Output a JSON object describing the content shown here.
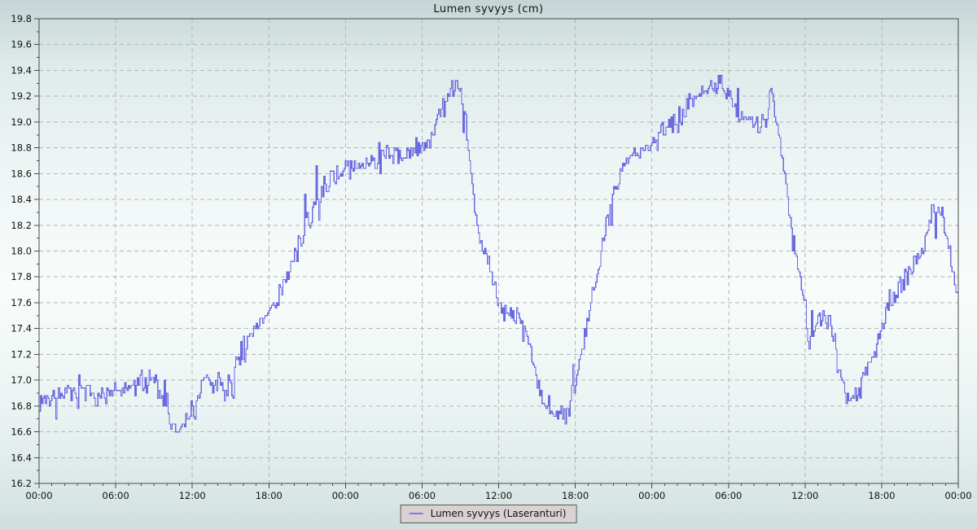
{
  "title": "Lumen syvyys (cm)",
  "legend": {
    "label": "Lumen syvyys (Laseranturi)"
  },
  "colors": {
    "line": "#6b6be0",
    "grid": "#b5b5b5",
    "axis": "#4a4a4a",
    "text": "#111111",
    "legend_bg": "#d9d2d2"
  },
  "chart_data": {
    "type": "line",
    "title": "Lumen syvyys (cm)",
    "xlabel": "",
    "ylabel": "",
    "grid": true,
    "legend_position": "bottom",
    "legend_entries": [
      "Lumen syvyys (Laseranturi)"
    ],
    "ylim": [
      16.2,
      19.8
    ],
    "y_tick_step": 0.2,
    "y_minor_step": 0.1,
    "xlim_hours": [
      0,
      72
    ],
    "x_tick_step_hours": 6,
    "x_minor_step_hours": 1,
    "x_tick_labels": [
      "00:00",
      "06:00",
      "12:00",
      "18:00",
      "00:00",
      "06:00",
      "12:00",
      "18:00",
      "00:00",
      "06:00",
      "12:00",
      "18:00",
      "00:00"
    ],
    "series": [
      {
        "name": "Lumen syvyys (Laseranturi)",
        "color": "#6b6be0",
        "style": "noisy-step",
        "sample_interval_hours": 0.1,
        "noise_amplitude": 0.1,
        "spike_chance": 0.08,
        "spike_amplitude": 0.2,
        "quantize": 0.02,
        "seed": 7,
        "trend_keypoints": [
          [
            0,
            16.85
          ],
          [
            1,
            16.86
          ],
          [
            2,
            16.9
          ],
          [
            3,
            16.88
          ],
          [
            4,
            16.9
          ],
          [
            5,
            16.88
          ],
          [
            6,
            16.9
          ],
          [
            7,
            16.92
          ],
          [
            8,
            17.0
          ],
          [
            8.5,
            17.05
          ],
          [
            9,
            17.0
          ],
          [
            9.5,
            16.9
          ],
          [
            10,
            16.78
          ],
          [
            10.5,
            16.6
          ],
          [
            11,
            16.6
          ],
          [
            11.5,
            16.68
          ],
          [
            12,
            16.78
          ],
          [
            12.5,
            16.92
          ],
          [
            13,
            17.0
          ],
          [
            13.5,
            16.95
          ],
          [
            14,
            16.98
          ],
          [
            14.5,
            16.9
          ],
          [
            15,
            17.0
          ],
          [
            15.5,
            17.1
          ],
          [
            16,
            17.22
          ],
          [
            16.5,
            17.32
          ],
          [
            17,
            17.4
          ],
          [
            17.5,
            17.45
          ],
          [
            18,
            17.55
          ],
          [
            18.5,
            17.62
          ],
          [
            19,
            17.72
          ],
          [
            19.5,
            17.82
          ],
          [
            20,
            17.95
          ],
          [
            20.5,
            18.1
          ],
          [
            21,
            18.22
          ],
          [
            21.5,
            18.35
          ],
          [
            22,
            18.45
          ],
          [
            22.5,
            18.52
          ],
          [
            23,
            18.58
          ],
          [
            23.5,
            18.6
          ],
          [
            24,
            18.62
          ],
          [
            25,
            18.66
          ],
          [
            26,
            18.7
          ],
          [
            27,
            18.74
          ],
          [
            28,
            18.74
          ],
          [
            29,
            18.76
          ],
          [
            30,
            18.8
          ],
          [
            30.5,
            18.85
          ],
          [
            31,
            18.95
          ],
          [
            31.5,
            19.08
          ],
          [
            32,
            19.18
          ],
          [
            32.5,
            19.28
          ],
          [
            33,
            19.25
          ],
          [
            33.4,
            19.0
          ],
          [
            33.8,
            18.6
          ],
          [
            34.2,
            18.25
          ],
          [
            34.6,
            18.05
          ],
          [
            35,
            17.95
          ],
          [
            35.5,
            17.8
          ],
          [
            36,
            17.62
          ],
          [
            36.5,
            17.5
          ],
          [
            37,
            17.55
          ],
          [
            37.5,
            17.48
          ],
          [
            38,
            17.42
          ],
          [
            38.5,
            17.25
          ],
          [
            39,
            17.0
          ],
          [
            39.5,
            16.85
          ],
          [
            40,
            16.78
          ],
          [
            40.5,
            16.75
          ],
          [
            41,
            16.72
          ],
          [
            41.5,
            16.8
          ],
          [
            42,
            17.0
          ],
          [
            42.5,
            17.25
          ],
          [
            43,
            17.5
          ],
          [
            43.5,
            17.75
          ],
          [
            44,
            18.0
          ],
          [
            44.5,
            18.25
          ],
          [
            45,
            18.45
          ],
          [
            45.5,
            18.6
          ],
          [
            46,
            18.7
          ],
          [
            46.5,
            18.74
          ],
          [
            47,
            18.76
          ],
          [
            47.5,
            18.8
          ],
          [
            48,
            18.86
          ],
          [
            48.5,
            18.9
          ],
          [
            49,
            18.95
          ],
          [
            49.5,
            18.98
          ],
          [
            50,
            19.0
          ],
          [
            50.5,
            19.06
          ],
          [
            51,
            19.18
          ],
          [
            51.5,
            19.22
          ],
          [
            52,
            19.28
          ],
          [
            52.5,
            19.28
          ],
          [
            53,
            19.3
          ],
          [
            53.5,
            19.26
          ],
          [
            54,
            19.2
          ],
          [
            54.5,
            19.12
          ],
          [
            55,
            19.02
          ],
          [
            55.5,
            19.06
          ],
          [
            56,
            19.0
          ],
          [
            56.5,
            19.05
          ],
          [
            57,
            19.0
          ],
          [
            57.3,
            19.28
          ],
          [
            57.6,
            19.1
          ],
          [
            58,
            18.85
          ],
          [
            58.5,
            18.5
          ],
          [
            59,
            18.15
          ],
          [
            59.5,
            17.85
          ],
          [
            60,
            17.55
          ],
          [
            60.3,
            17.2
          ],
          [
            60.7,
            17.42
          ],
          [
            61,
            17.45
          ],
          [
            61.5,
            17.5
          ],
          [
            62,
            17.4
          ],
          [
            62.5,
            17.2
          ],
          [
            63,
            16.95
          ],
          [
            63.5,
            16.8
          ],
          [
            64,
            16.88
          ],
          [
            64.5,
            17.0
          ],
          [
            65,
            17.12
          ],
          [
            65.5,
            17.28
          ],
          [
            66,
            17.42
          ],
          [
            66.5,
            17.55
          ],
          [
            67,
            17.65
          ],
          [
            67.5,
            17.75
          ],
          [
            68,
            17.82
          ],
          [
            68.5,
            17.88
          ],
          [
            69,
            18.0
          ],
          [
            69.5,
            18.15
          ],
          [
            70,
            18.3
          ],
          [
            70.5,
            18.32
          ],
          [
            71,
            18.18
          ],
          [
            71.4,
            17.95
          ],
          [
            71.7,
            17.72
          ],
          [
            72,
            17.68
          ]
        ]
      }
    ]
  }
}
